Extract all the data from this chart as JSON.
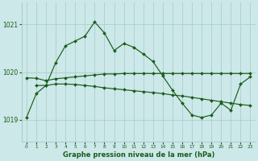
{
  "title": "Graphe pression niveau de la mer (hPa)",
  "bg_color": "#cce8e8",
  "grid_color": "#aacfcf",
  "line_color": "#1a5c1a",
  "text_color": "#1a5c1a",
  "xlim": [
    -0.5,
    23.5
  ],
  "ylim": [
    1018.55,
    1021.45
  ],
  "yticks": [
    1019,
    1020,
    1021
  ],
  "xticks": [
    0,
    1,
    2,
    3,
    4,
    5,
    6,
    7,
    8,
    9,
    10,
    11,
    12,
    13,
    14,
    15,
    16,
    17,
    18,
    19,
    20,
    21,
    22,
    23
  ],
  "series1_x": [
    0,
    1,
    2,
    3,
    4,
    5,
    6,
    7,
    8,
    9,
    10,
    11,
    12,
    13,
    14,
    15,
    16,
    17,
    18,
    19,
    20,
    21,
    22,
    23
  ],
  "series1_y": [
    1019.05,
    1019.55,
    1019.72,
    1020.2,
    1020.55,
    1020.65,
    1020.75,
    1021.05,
    1020.82,
    1020.45,
    1020.6,
    1020.52,
    1020.38,
    1020.22,
    1019.92,
    1019.62,
    1019.35,
    1019.1,
    1019.05,
    1019.1,
    1019.35,
    1019.2,
    1019.75,
    1019.9
  ],
  "series2_x": [
    0,
    1,
    2,
    3,
    4,
    5,
    6,
    7,
    8,
    9,
    10,
    11,
    12,
    13,
    14,
    15,
    16,
    17,
    18,
    19,
    20,
    21,
    22,
    23
  ],
  "series2_y": [
    1019.88,
    1019.87,
    1019.82,
    1019.86,
    1019.88,
    1019.9,
    1019.92,
    1019.94,
    1019.96,
    1019.96,
    1019.97,
    1019.97,
    1019.97,
    1019.97,
    1019.97,
    1019.97,
    1019.97,
    1019.97,
    1019.97,
    1019.97,
    1019.97,
    1019.97,
    1019.97,
    1019.97
  ],
  "series3_x": [
    1,
    2,
    3,
    4,
    5,
    6,
    7,
    8,
    9,
    10,
    11,
    12,
    13,
    14,
    15,
    16,
    17,
    18,
    19,
    20,
    21,
    22,
    23
  ],
  "series3_y": [
    1019.72,
    1019.72,
    1019.75,
    1019.75,
    1019.74,
    1019.72,
    1019.7,
    1019.67,
    1019.65,
    1019.63,
    1019.61,
    1019.59,
    1019.57,
    1019.55,
    1019.52,
    1019.5,
    1019.47,
    1019.44,
    1019.41,
    1019.38,
    1019.35,
    1019.32,
    1019.3
  ]
}
